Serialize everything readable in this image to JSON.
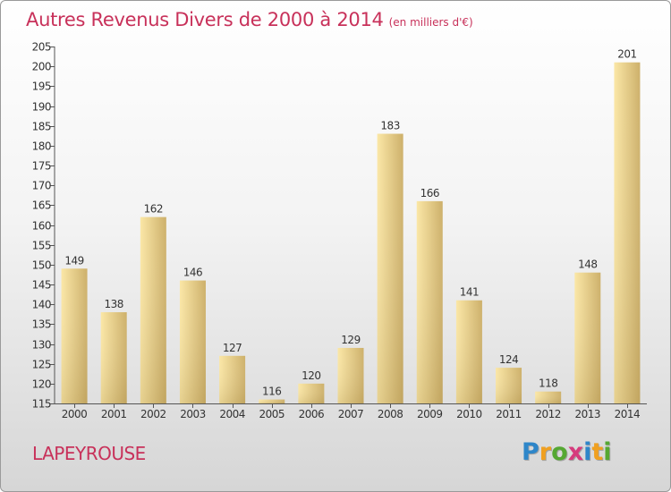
{
  "title": "Autres Revenus Divers de 2000 à 2014",
  "subtitle": "(en milliers d'€)",
  "location": "LAPEYROUSE",
  "brand": {
    "letters": [
      "P",
      "r",
      "o",
      "x",
      "i",
      "t",
      "i"
    ],
    "colors": [
      "#2e86c9",
      "#f0a020",
      "#55a832",
      "#d63b7d",
      "#2e86c9",
      "#f0a020",
      "#55a832"
    ]
  },
  "colors": {
    "title": "#c8315a",
    "bar_light": "#fbe7a6",
    "bar_dark": "#c9ad66"
  },
  "chart_data": {
    "type": "bar",
    "categories": [
      "2000",
      "2001",
      "2002",
      "2003",
      "2004",
      "2005",
      "2006",
      "2007",
      "2008",
      "2009",
      "2010",
      "2011",
      "2012",
      "2013",
      "2014"
    ],
    "values": [
      149,
      138,
      162,
      146,
      127,
      116,
      120,
      129,
      183,
      166,
      141,
      124,
      118,
      148,
      201
    ],
    "ylim": [
      115,
      205
    ],
    "yticks": [
      115,
      120,
      125,
      130,
      135,
      140,
      145,
      150,
      155,
      160,
      165,
      170,
      175,
      180,
      185,
      190,
      195,
      200,
      205
    ],
    "grid": false,
    "legend": "none"
  }
}
